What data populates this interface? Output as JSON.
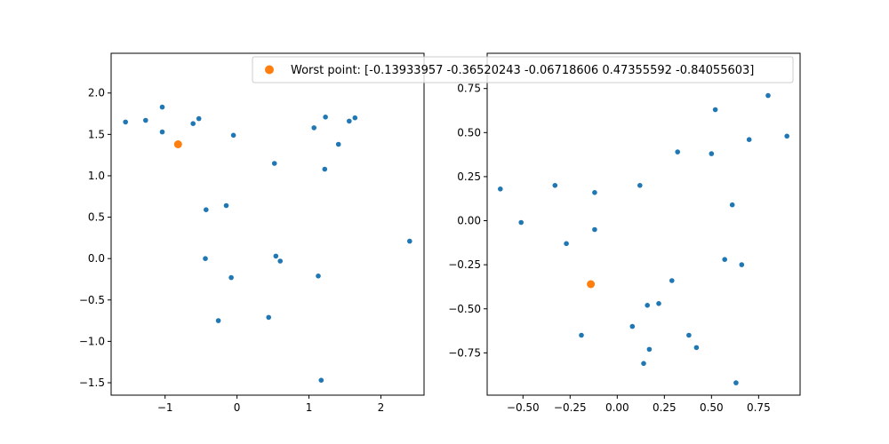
{
  "chart_data": [
    {
      "type": "scatter",
      "xlim": [
        -1.75,
        2.6
      ],
      "ylim": [
        -1.65,
        2.48
      ],
      "xticks": [
        -1,
        0,
        1,
        2
      ],
      "yticks": [
        -1.5,
        -1.0,
        -0.5,
        0.0,
        0.5,
        1.0,
        1.5,
        2.0
      ],
      "xtick_labels": [
        "−1",
        "0",
        "1",
        "2"
      ],
      "ytick_labels": [
        "−1.5",
        "−1.0",
        "−0.5",
        "0.0",
        "0.5",
        "1.0",
        "1.5",
        "2.0"
      ],
      "grid": false,
      "series": [
        {
          "color": "#1f77b4",
          "points": [
            [
              -1.55,
              1.65
            ],
            [
              -1.27,
              1.67
            ],
            [
              -1.04,
              1.83
            ],
            [
              -1.04,
              1.53
            ],
            [
              -0.61,
              1.63
            ],
            [
              -0.53,
              1.69
            ],
            [
              -0.05,
              1.49
            ],
            [
              0.52,
              1.15
            ],
            [
              1.07,
              1.58
            ],
            [
              1.23,
              1.71
            ],
            [
              1.56,
              1.66
            ],
            [
              1.64,
              1.7
            ],
            [
              1.41,
              1.38
            ],
            [
              1.22,
              1.08
            ],
            [
              -0.43,
              0.59
            ],
            [
              -0.15,
              0.64
            ],
            [
              -0.44,
              0.0
            ],
            [
              0.54,
              0.03
            ],
            [
              0.6,
              -0.03
            ],
            [
              -0.08,
              -0.23
            ],
            [
              1.13,
              -0.21
            ],
            [
              2.4,
              0.21
            ],
            [
              -0.26,
              -0.75
            ],
            [
              0.44,
              -0.71
            ],
            [
              1.17,
              -1.47
            ]
          ]
        },
        {
          "name": "Worst point: [-0.13933957 -0.36520243 -0.06718606  0.47355592 -0.84055603]",
          "color": "#ff7f0e",
          "points": [
            [
              -0.82,
              1.38
            ]
          ]
        }
      ],
      "legend": "top-right"
    },
    {
      "type": "scatter",
      "xlim": [
        -0.69,
        0.97
      ],
      "ylim": [
        -0.99,
        0.95
      ],
      "xticks": [
        -0.5,
        -0.25,
        0.0,
        0.25,
        0.5,
        0.75
      ],
      "yticks": [
        -0.75,
        -0.5,
        -0.25,
        0.0,
        0.25,
        0.5,
        0.75
      ],
      "xtick_labels": [
        "−0.50",
        "−0.25",
        "0.00",
        "0.25",
        "0.50",
        "0.75"
      ],
      "ytick_labels": [
        "−0.75",
        "−0.50",
        "−0.25",
        "0.00",
        "0.25",
        "0.50",
        "0.75"
      ],
      "grid": false,
      "series": [
        {
          "color": "#1f77b4",
          "points": [
            [
              -0.62,
              0.18
            ],
            [
              -0.51,
              -0.01
            ],
            [
              -0.33,
              0.2
            ],
            [
              -0.12,
              0.16
            ],
            [
              -0.27,
              -0.13
            ],
            [
              -0.12,
              -0.05
            ],
            [
              0.12,
              0.2
            ],
            [
              0.32,
              0.39
            ],
            [
              0.52,
              0.63
            ],
            [
              0.5,
              0.38
            ],
            [
              0.7,
              0.46
            ],
            [
              0.8,
              0.71
            ],
            [
              0.9,
              0.48
            ],
            [
              0.61,
              0.09
            ],
            [
              0.57,
              -0.22
            ],
            [
              0.66,
              -0.25
            ],
            [
              0.29,
              -0.34
            ],
            [
              0.16,
              -0.48
            ],
            [
              0.22,
              -0.47
            ],
            [
              0.08,
              -0.6
            ],
            [
              -0.19,
              -0.65
            ],
            [
              0.17,
              -0.73
            ],
            [
              0.38,
              -0.65
            ],
            [
              0.42,
              -0.72
            ],
            [
              0.14,
              -0.81
            ],
            [
              0.63,
              -0.92
            ]
          ]
        },
        {
          "color": "#ff7f0e",
          "points": [
            [
              -0.14,
              -0.36
            ]
          ]
        }
      ]
    }
  ]
}
